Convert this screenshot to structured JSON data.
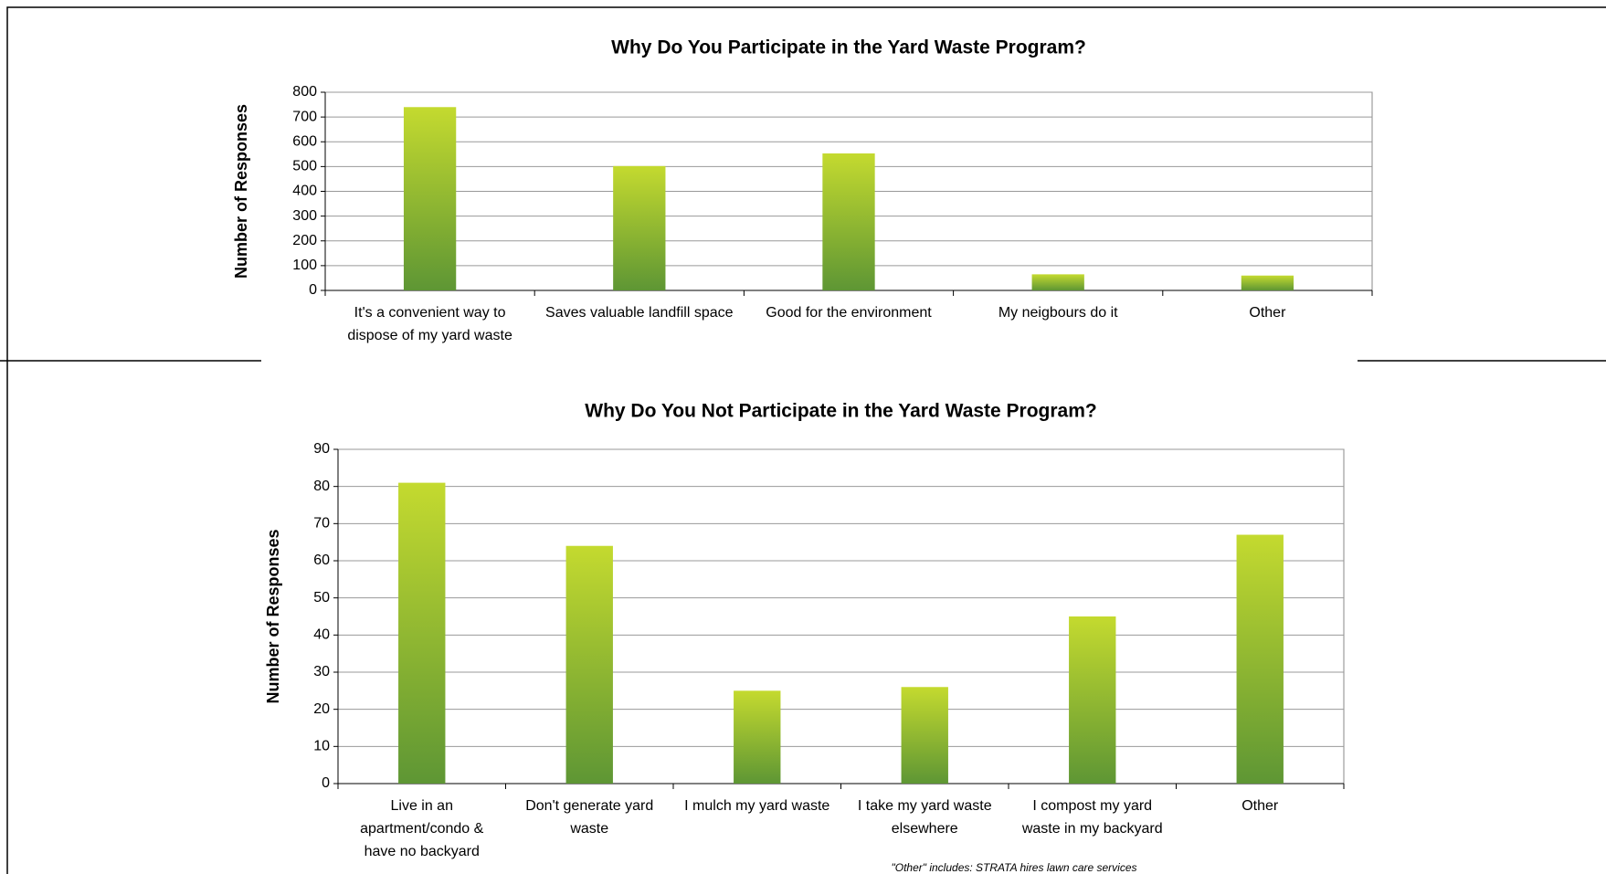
{
  "chart_data": [
    {
      "type": "bar",
      "title": "Why Do You Participate in the Yard Waste Program?",
      "y_label": "Number of Responses",
      "categories": [
        "It's a convenient way to dispose of my yard waste",
        "Saves valuable landfill space",
        "Good for the environment",
        "My neigbours do it",
        "Other"
      ],
      "values": [
        740,
        502,
        553,
        65,
        60
      ],
      "gradient": [
        "#c4da2f",
        "#5e9634"
      ],
      "ylim": [
        0,
        800
      ],
      "yticks": [
        0,
        100,
        200,
        300,
        400,
        500,
        600,
        700,
        800
      ],
      "grid": true
    },
    {
      "type": "bar",
      "title": "Why Do You Not Participate in the Yard Waste Program?",
      "y_label": "Number of Responses",
      "categories": [
        "Live in an apartment/condo & have no backyard",
        "Don't generate yard waste",
        "I mulch my yard waste",
        "I take my yard waste elsewhere",
        "I compost my yard waste in my backyard",
        "Other"
      ],
      "values": [
        81,
        64,
        25,
        26,
        45,
        67
      ],
      "gradient": [
        "#c4da2f",
        "#5e9634"
      ],
      "ylim": [
        0,
        90
      ],
      "yticks": [
        0,
        10,
        20,
        30,
        40,
        50,
        60,
        70,
        80,
        90
      ],
      "grid": true,
      "annotation": "\"Other\" includes: STRATA hires lawn care services"
    }
  ]
}
